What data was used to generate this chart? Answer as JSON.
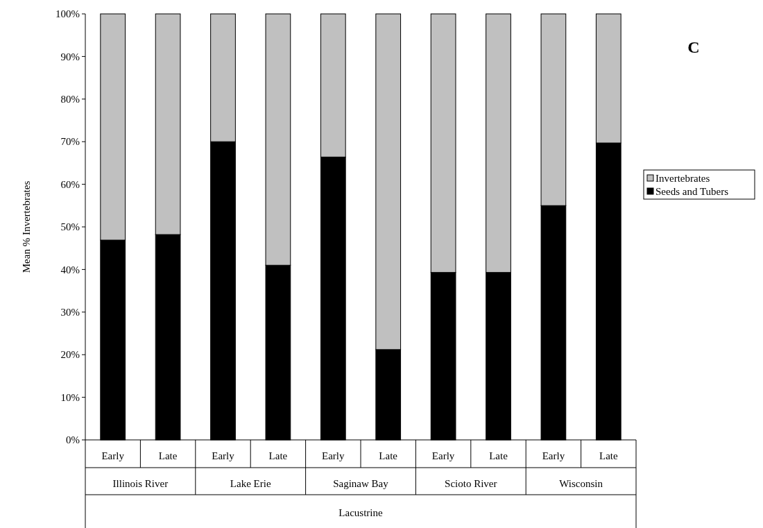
{
  "chart_data": {
    "type": "bar",
    "stacked": true,
    "ylabel": "Mean % Invertebrates",
    "categories": [
      "Early",
      "Late",
      "Early",
      "Late",
      "Early",
      "Late",
      "Early",
      "Late",
      "Early",
      "Late"
    ],
    "series": [
      {
        "name": "Seeds and Tubers",
        "color": "#000000",
        "values": [
          46.9,
          48.2,
          70.0,
          41.0,
          66.4,
          21.2,
          39.3,
          39.3,
          55.0,
          69.7
        ]
      },
      {
        "name": "Invertebrates",
        "color": "#c0c0c0",
        "values": [
          53.1,
          51.8,
          30.0,
          59.0,
          33.6,
          78.8,
          60.7,
          60.7,
          45.0,
          30.3
        ]
      }
    ],
    "ylim": [
      0,
      100
    ],
    "yticks": [
      {
        "value": 0,
        "label": "0%"
      },
      {
        "value": 10,
        "label": "10%"
      },
      {
        "value": 20,
        "label": "20%"
      },
      {
        "value": 30,
        "label": "30%"
      },
      {
        "value": 40,
        "label": "40%"
      },
      {
        "value": 50,
        "label": "50%"
      },
      {
        "value": 60,
        "label": "60%"
      },
      {
        "value": 70,
        "label": "70%"
      },
      {
        "value": 80,
        "label": "80%"
      },
      {
        "value": 90,
        "label": "90%"
      },
      {
        "value": 100,
        "label": "100%"
      }
    ],
    "legend": "right",
    "annotations": [
      "Illinois River",
      "Lake Erie",
      "Saginaw Bay",
      "Scioto River",
      "Wisconsin",
      "Lacustrine",
      "C"
    ]
  }
}
